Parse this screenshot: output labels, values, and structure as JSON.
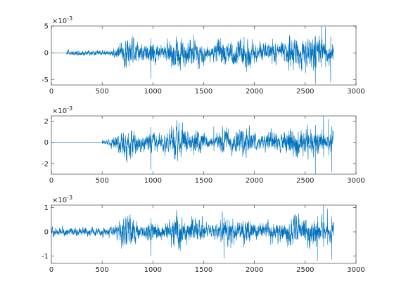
{
  "chart_data": [
    {
      "type": "line",
      "title": "",
      "xlabel": "",
      "ylabel": "",
      "exponent_label": "×10",
      "exponent_power": "-3",
      "xlim": [
        0,
        3000
      ],
      "ylim": [
        -6,
        5
      ],
      "xticks": [
        0,
        500,
        1000,
        1500,
        2000,
        2500,
        3000
      ],
      "xtick_labels": [
        "0",
        "500",
        "1000",
        "1500",
        "2000",
        "2500",
        "3000"
      ],
      "yticks": [
        -5,
        0,
        5
      ],
      "ytick_labels": [
        "-5",
        "0",
        "5"
      ],
      "grid": false,
      "series": [
        {
          "color": "#0072BD",
          "signal": {
            "n": 2780,
            "flat_until": 150,
            "low_until": 600,
            "low_amplitude": 0.35,
            "ramp_until": 720,
            "main_amplitude": 1.7,
            "peaks": [
              {
                "x": 980,
                "value": -4.8
              },
              {
                "x": 1400,
                "value": 3.4
              },
              {
                "x": 2600,
                "value": -5.8
              },
              {
                "x": 2660,
                "value": 5.0
              },
              {
                "x": 2700,
                "value": 4.8
              },
              {
                "x": 2750,
                "value": -5.5
              }
            ]
          }
        }
      ]
    },
    {
      "type": "line",
      "title": "",
      "xlabel": "",
      "ylabel": "",
      "exponent_label": "×10",
      "exponent_power": "-3",
      "xlim": [
        0,
        3000
      ],
      "ylim": [
        -3,
        2.5
      ],
      "xticks": [
        0,
        500,
        1000,
        1500,
        2000,
        2500,
        3000
      ],
      "xtick_labels": [
        "0",
        "500",
        "1000",
        "1500",
        "2000",
        "2500",
        "3000"
      ],
      "yticks": [
        -2,
        0,
        2
      ],
      "ytick_labels": [
        "-2",
        "0",
        "2"
      ],
      "grid": false,
      "series": [
        {
          "color": "#0072BD",
          "signal": {
            "n": 2780,
            "flat_until": 500,
            "low_until": 560,
            "low_amplitude": 0.15,
            "ramp_until": 700,
            "main_amplitude": 0.8,
            "peaks": [
              {
                "x": 980,
                "value": -2.6
              },
              {
                "x": 1600,
                "value": 1.5
              },
              {
                "x": 2600,
                "value": -3.0
              },
              {
                "x": 2680,
                "value": 2.5
              },
              {
                "x": 2730,
                "value": 2.2
              },
              {
                "x": 2760,
                "value": -2.8
              }
            ]
          }
        }
      ]
    },
    {
      "type": "line",
      "title": "",
      "xlabel": "",
      "ylabel": "",
      "exponent_label": "×10",
      "exponent_power": "-3",
      "xlim": [
        0,
        3000
      ],
      "ylim": [
        -1.3,
        1.1
      ],
      "xticks": [
        0,
        500,
        1000,
        1500,
        2000,
        2500,
        3000
      ],
      "xtick_labels": [
        "0",
        "500",
        "1000",
        "1500",
        "2000",
        "2500",
        "3000"
      ],
      "yticks": [
        -1,
        0,
        1
      ],
      "ytick_labels": [
        "-1",
        "0",
        "1"
      ],
      "grid": false,
      "series": [
        {
          "color": "#0072BD",
          "signal": {
            "n": 2780,
            "flat_until": 0,
            "low_until": 600,
            "low_amplitude": 0.12,
            "ramp_until": 700,
            "main_amplitude": 0.35,
            "peaks": [
              {
                "x": 980,
                "value": -1.0
              },
              {
                "x": 1700,
                "value": -1.1
              },
              {
                "x": 2620,
                "value": -1.2
              },
              {
                "x": 2680,
                "value": 1.1
              },
              {
                "x": 2720,
                "value": 0.95
              },
              {
                "x": 2760,
                "value": -1.15
              }
            ]
          }
        }
      ]
    }
  ]
}
